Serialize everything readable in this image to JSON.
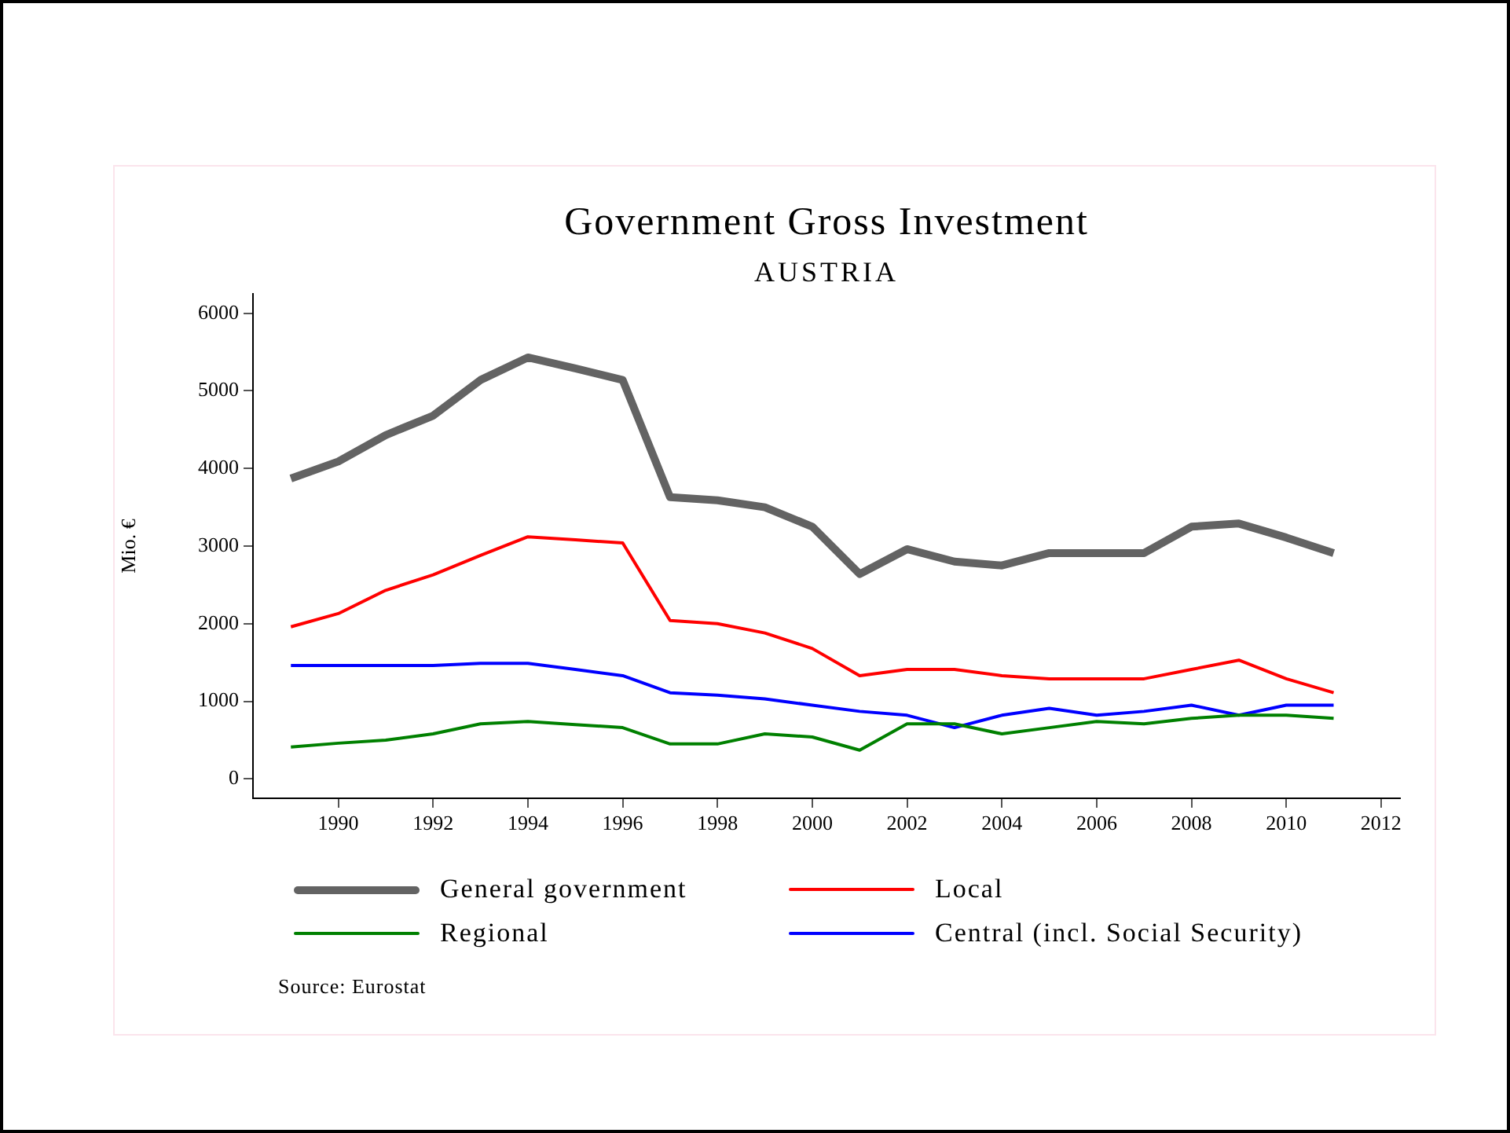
{
  "chart_data": {
    "type": "line",
    "title": "Government Gross Investment",
    "subtitle": "AUSTRIA",
    "ylabel": "Mio. €",
    "x": [
      1989,
      1990,
      1991,
      1992,
      1993,
      1994,
      1995,
      1996,
      1997,
      1998,
      1999,
      2000,
      2001,
      2002,
      2003,
      2004,
      2005,
      2006,
      2007,
      2008,
      2009,
      2010,
      2011
    ],
    "series": [
      {
        "name": "General government",
        "color": "#636363",
        "values": [
          3870,
          4090,
          4430,
          4680,
          5140,
          5430,
          5290,
          5140,
          3630,
          3590,
          3500,
          3250,
          2640,
          2960,
          2800,
          2750,
          2910,
          2910,
          2910,
          3250,
          3290,
          3110,
          2910
        ]
      },
      {
        "name": "Local",
        "color": "#ff0000",
        "values": [
          1960,
          2130,
          2430,
          2630,
          2880,
          3120,
          3080,
          3040,
          2040,
          2000,
          1880,
          1680,
          1330,
          1410,
          1410,
          1330,
          1290,
          1290,
          1290,
          1410,
          1530,
          1290,
          1110
        ]
      },
      {
        "name": "Regional",
        "color": "#008000",
        "values": [
          410,
          460,
          500,
          580,
          710,
          740,
          700,
          660,
          450,
          450,
          580,
          540,
          370,
          710,
          710,
          580,
          660,
          740,
          710,
          780,
          820,
          820,
          780
        ]
      },
      {
        "name": "Central (incl. Social Security)",
        "color": "#0000ff",
        "values": [
          1460,
          1460,
          1460,
          1460,
          1490,
          1490,
          1410,
          1330,
          1110,
          1080,
          1030,
          950,
          870,
          820,
          660,
          820,
          910,
          820,
          870,
          950,
          820,
          950,
          950
        ]
      }
    ],
    "xlim": [
      1988.2,
      2012.4
    ],
    "xticks": [
      1990,
      1992,
      1994,
      1996,
      1998,
      2000,
      2002,
      2004,
      2006,
      2008,
      2010,
      2012
    ],
    "ylim": [
      -250,
      6250
    ],
    "yticks": [
      0,
      1000,
      2000,
      3000,
      4000,
      5000,
      6000
    ],
    "grid": false,
    "legend": "bottom",
    "marker": "none",
    "line_style": "solid",
    "annotations": [
      "Source: Eurostat"
    ]
  }
}
